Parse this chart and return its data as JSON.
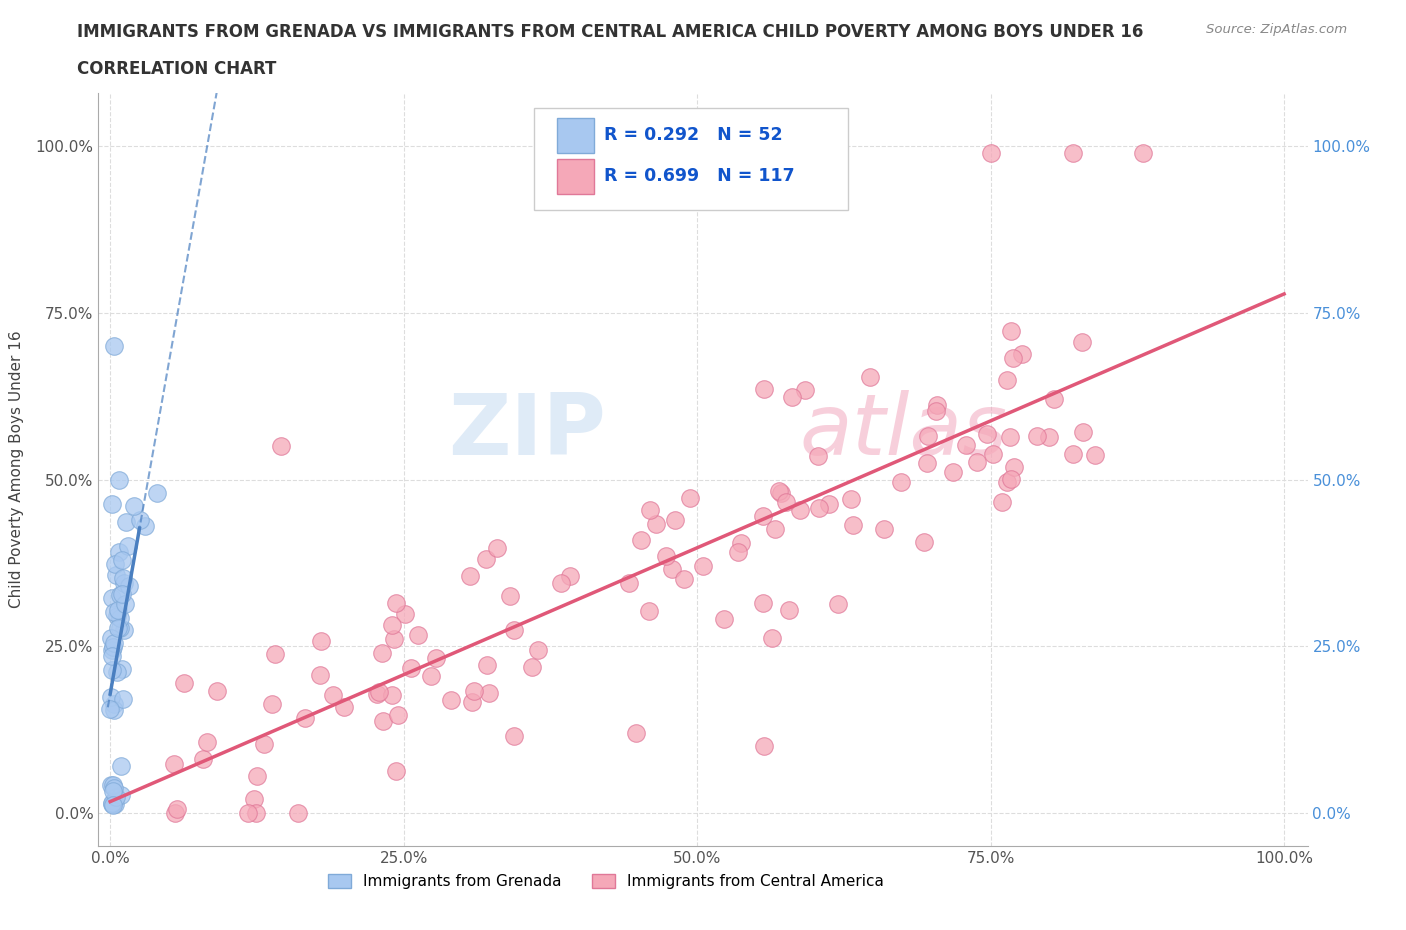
{
  "title": "IMMIGRANTS FROM GRENADA VS IMMIGRANTS FROM CENTRAL AMERICA CHILD POVERTY AMONG BOYS UNDER 16",
  "subtitle": "CORRELATION CHART",
  "source": "Source: ZipAtlas.com",
  "ylabel": "Child Poverty Among Boys Under 16",
  "ytick_labels": [
    "0.0%",
    "25.0%",
    "50.0%",
    "75.0%",
    "100.0%"
  ],
  "ytick_vals": [
    0.0,
    0.25,
    0.5,
    0.75,
    1.0
  ],
  "xtick_labels": [
    "0.0%",
    "25.0%",
    "50.0%",
    "75.0%",
    "100.0%"
  ],
  "xtick_vals": [
    0.0,
    0.25,
    0.5,
    0.75,
    1.0
  ],
  "grenada_color": "#a8c8f0",
  "grenada_edge": "#80aad8",
  "central_color": "#f5a8b8",
  "central_edge": "#e07898",
  "grenada_R": 0.292,
  "grenada_N": 52,
  "central_R": 0.699,
  "central_N": 117,
  "legend_label_grenada": "Immigrants from Grenada",
  "legend_label_central": "Immigrants from Central America",
  "watermark_zip": "ZIP",
  "watermark_atlas": "atlas",
  "grenada_line_color": "#4a7fc0",
  "central_line_color": "#e05878",
  "right_tick_color": "#4a90d9",
  "background_color": "#ffffff",
  "grid_color": "#dddddd",
  "title_color": "#333333",
  "source_color": "#888888"
}
